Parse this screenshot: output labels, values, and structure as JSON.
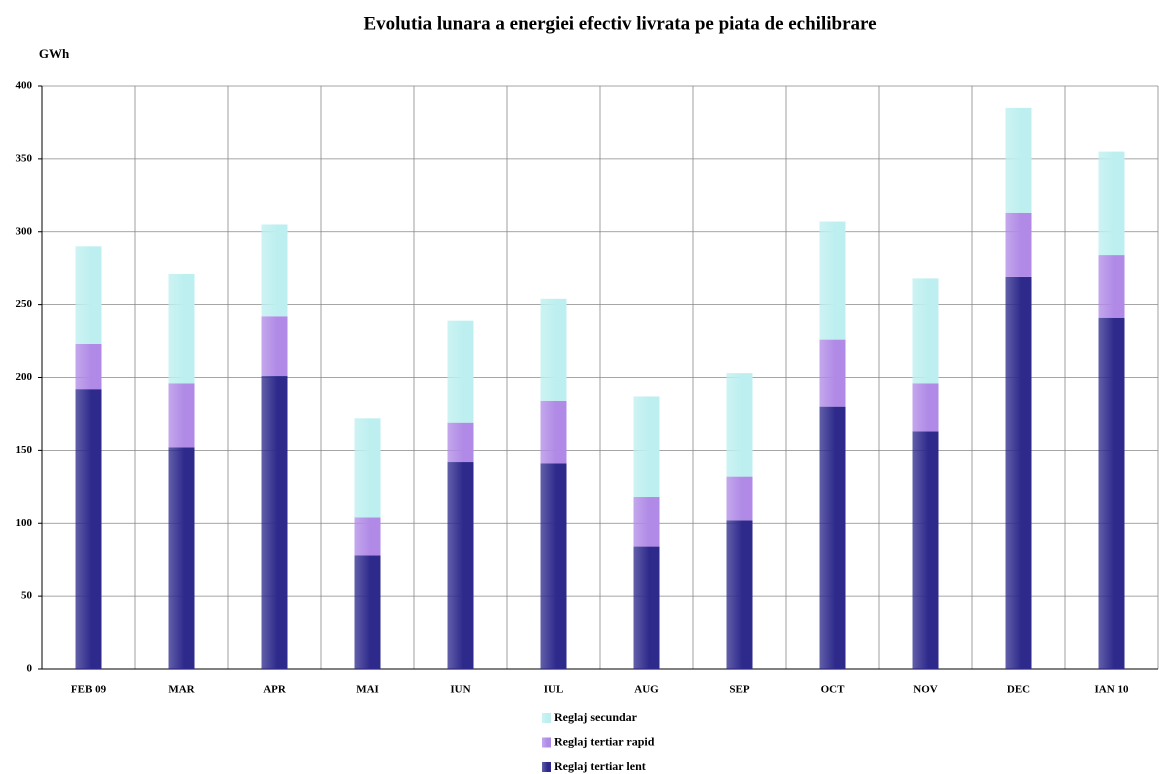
{
  "chart_data": {
    "type": "stacked_bar",
    "title": "Evolutia lunara a energiei efectiv livrata pe piata de echilibrare",
    "y_label": "GWh",
    "categories": [
      "FEB 09",
      "MAR",
      "APR",
      "MAI",
      "IUN",
      "IUL",
      "AUG",
      "SEP",
      "OCT",
      "NOV",
      "DEC",
      "IAN 10"
    ],
    "series": [
      {
        "name": "Reglaj tertiar lent",
        "color": "#2e2a8c",
        "values": [
          192,
          152,
          201,
          78,
          142,
          141,
          84,
          102,
          180,
          163,
          269,
          241
        ]
      },
      {
        "name": "Reglaj tertiar rapid",
        "color": "#b08ae6",
        "values": [
          31,
          44,
          41,
          26,
          27,
          43,
          34,
          30,
          46,
          33,
          44,
          43
        ]
      },
      {
        "name": "Reglaj secundar",
        "color": "#bdeff0",
        "values": [
          67,
          75,
          63,
          68,
          70,
          70,
          69,
          71,
          81,
          72,
          72,
          71
        ]
      }
    ],
    "ylim": [
      0,
      400
    ],
    "yticks": [
      0,
      50,
      100,
      150,
      200,
      250,
      300,
      350,
      400
    ],
    "grid": true
  }
}
